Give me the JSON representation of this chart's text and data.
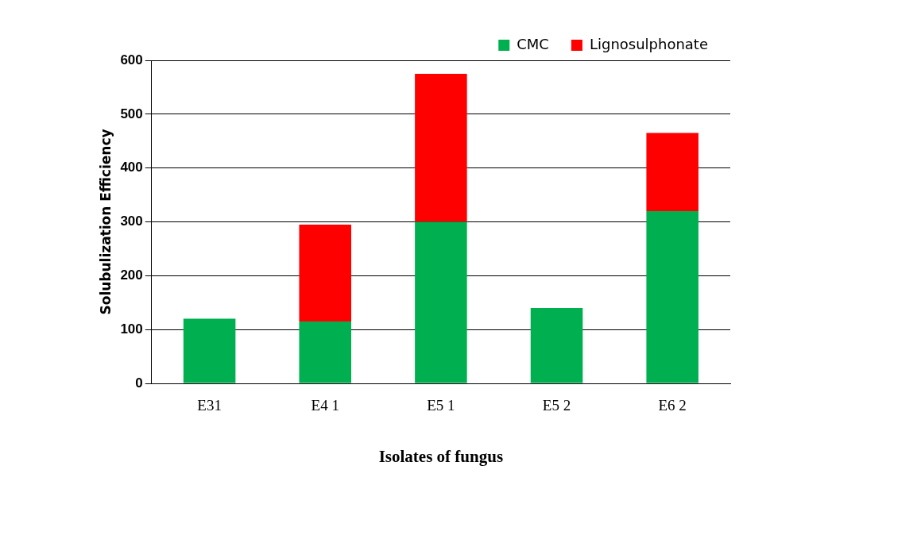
{
  "chart_data": {
    "type": "bar",
    "stacked": true,
    "xlabel": "Isolates of fungus",
    "ylabel": "Solubulization Efficiency",
    "categories": [
      "E31",
      "E4 1",
      "E5 1",
      "E5 2",
      "E6 2"
    ],
    "series": [
      {
        "name": "CMC",
        "color": "#00b050",
        "values": [
          120,
          115,
          300,
          140,
          320
        ]
      },
      {
        "name": "Lignosulphonate",
        "color": "#ff0000",
        "values": [
          0,
          180,
          275,
          0,
          145
        ]
      }
    ],
    "ylim": [
      0,
      600
    ],
    "yticks": [
      0,
      100,
      200,
      300,
      400,
      500,
      600
    ],
    "grid": "y",
    "legend": "top right"
  }
}
